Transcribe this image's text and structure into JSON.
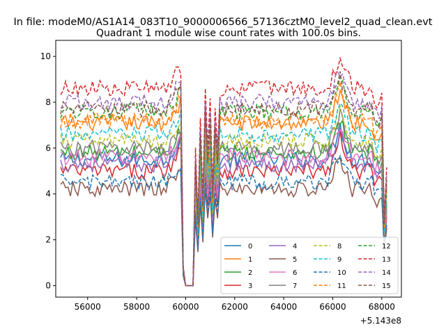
{
  "chart_data": {
    "type": "line",
    "suptitle": "In file: modeM0/AS1A14_083T10_9000006566_57136cztM0_level2_quad_clean.evt",
    "title": "Quadrant 1 module wise count rates with 100.0s bins.",
    "xlabel": "",
    "ylabel": "",
    "x_offset_label": "+5.143e8",
    "xlim": [
      54700,
      68800
    ],
    "ylim": [
      -0.5,
      10.7
    ],
    "xticks": [
      56000,
      58000,
      60000,
      62000,
      64000,
      66000,
      68000
    ],
    "xtick_labels": [
      "56000",
      "58000",
      "60000",
      "62000",
      "64000",
      "66000",
      "68000"
    ],
    "yticks": [
      0,
      2,
      4,
      6,
      8,
      10
    ],
    "ytick_labels": [
      "0",
      "2",
      "4",
      "6",
      "8",
      "10"
    ],
    "grid": false,
    "legend_position": "lower-right",
    "legend_columns": 4,
    "x_start": 54900,
    "x_step": 100,
    "series": [
      {
        "name": "0",
        "color": "#1f77b4",
        "linestyle": "solid",
        "base": 5.5
      },
      {
        "name": "1",
        "color": "#ff7f0e",
        "linestyle": "solid",
        "base": 7.1
      },
      {
        "name": "2",
        "color": "#2ca02c",
        "linestyle": "solid",
        "base": 5.8
      },
      {
        "name": "3",
        "color": "#d62728",
        "linestyle": "solid",
        "base": 5.0
      },
      {
        "name": "4",
        "color": "#9467bd",
        "linestyle": "solid",
        "base": 5.3
      },
      {
        "name": "5",
        "color": "#8c564b",
        "linestyle": "solid",
        "base": 4.2
      },
      {
        "name": "6",
        "color": "#e377c2",
        "linestyle": "solid",
        "base": 5.6
      },
      {
        "name": "7",
        "color": "#7f7f7f",
        "linestyle": "solid",
        "base": 6.0
      },
      {
        "name": "8",
        "color": "#bcbd22",
        "linestyle": "dashed",
        "base": 6.3
      },
      {
        "name": "9",
        "color": "#17becf",
        "linestyle": "dashed",
        "base": 6.6
      },
      {
        "name": "10",
        "color": "#1f77b4",
        "linestyle": "dashed",
        "base": 4.5
      },
      {
        "name": "11",
        "color": "#ff7f0e",
        "linestyle": "dashed",
        "base": 7.2
      },
      {
        "name": "12",
        "color": "#2ca02c",
        "linestyle": "dashed",
        "base": 7.6
      },
      {
        "name": "13",
        "color": "#d62728",
        "linestyle": "dashed",
        "base": 8.6
      },
      {
        "name": "14",
        "color": "#9467bd",
        "linestyle": "dashed",
        "base": 8.0
      },
      {
        "name": "15",
        "color": "#8c564b",
        "linestyle": "dashed",
        "base": 7.7
      }
    ]
  }
}
